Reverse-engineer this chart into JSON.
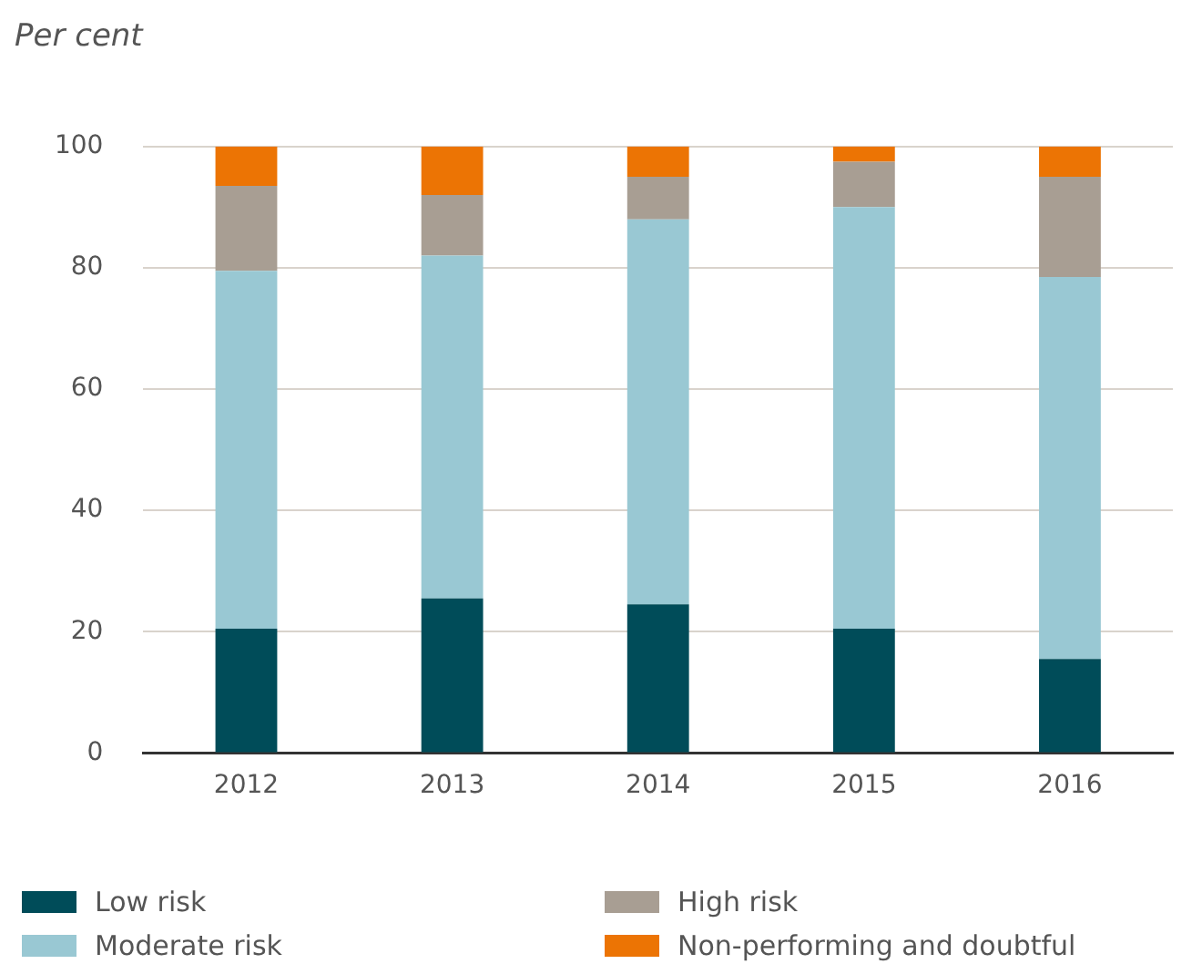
{
  "chart_data": {
    "type": "bar",
    "stacked": true,
    "ylabel": "Per cent",
    "categories": [
      "2012",
      "2013",
      "2014",
      "2015",
      "2016"
    ],
    "series": [
      {
        "name": "Low risk",
        "color": "#004c59",
        "values": [
          20.5,
          25.5,
          24.5,
          20.5,
          15.5
        ]
      },
      {
        "name": "Moderate risk",
        "color": "#99c8d3",
        "values": [
          59,
          56.5,
          63.5,
          69.5,
          63
        ]
      },
      {
        "name": "High risk",
        "color": "#a89e93",
        "values": [
          14,
          10,
          7,
          7.5,
          16.5
        ]
      },
      {
        "name": "Non-performing and doubtful",
        "color": "#ec7404",
        "values": [
          6.5,
          8,
          5,
          2.5,
          5
        ]
      }
    ],
    "ylim": [
      0,
      100
    ],
    "yticks": [
      0,
      20,
      40,
      60,
      80,
      100
    ],
    "grid": "y",
    "legend": "bottom"
  }
}
